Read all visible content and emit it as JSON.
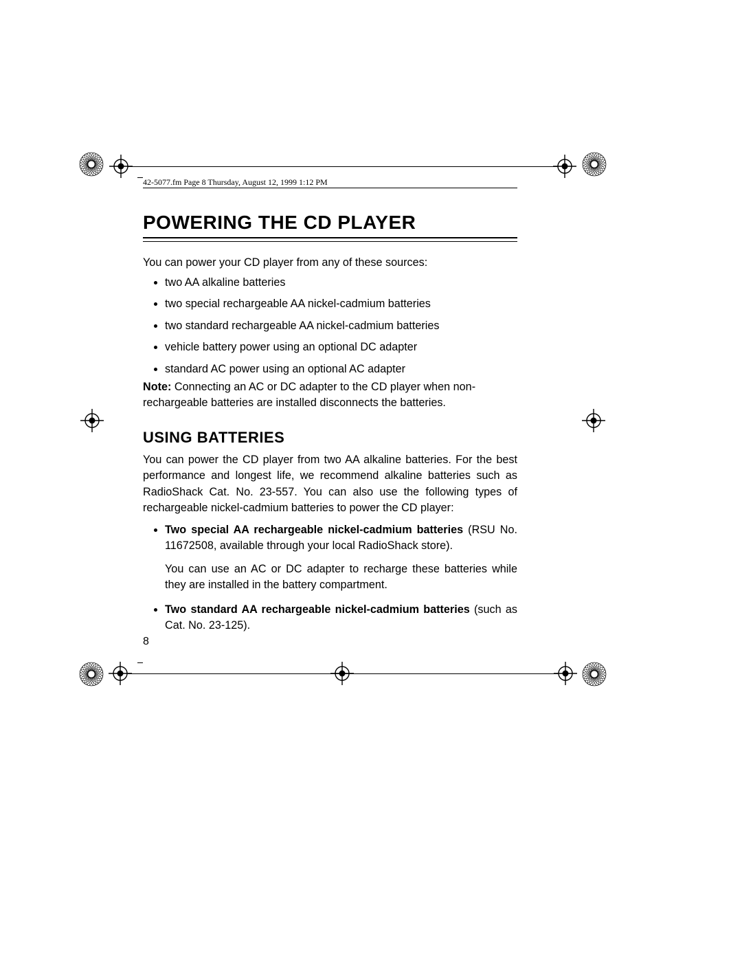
{
  "header": {
    "text": "42-5077.fm  Page 8  Thursday, August 12, 1999  1:12 PM"
  },
  "title": "POWERING THE CD PLAYER",
  "intro": "You can power your CD player from any of these sources:",
  "bullets": [
    "two AA alkaline batteries",
    "two special rechargeable AA nickel-cadmium batteries",
    "two standard rechargeable AA nickel-cadmium batteries",
    "vehicle battery power using an optional DC adapter",
    "standard AC power using an optional AC adapter"
  ],
  "note_label": "Note:",
  "note_text": " Connecting an AC or DC adapter to the CD player when non-rechargeable batteries are installed disconnects the batteries.",
  "subheading": "USING BATTERIES",
  "para2": "You can power the CD player from two AA alkaline batteries. For the best performance and longest life, we recommend alkaline batteries such as RadioShack Cat. No. 23-557. You can also use the following types of rechargeable nickel-cadmium batteries to power the CD player:",
  "detail_bullets": [
    {
      "bold": "Two special AA rechargeable nickel-cadmium batteries",
      "rest": " (RSU No. 11672508, available through your local RadioShack store).",
      "extra": "You can use an AC or DC adapter to recharge these batteries while they are installed in the battery compartment."
    },
    {
      "bold": "Two standard AA rechargeable nickel-cadmium batteries",
      "rest": " (such as Cat. No. 23-125).",
      "extra": ""
    }
  ],
  "page_number": "8",
  "colors": {
    "text": "#000000",
    "background": "#ffffff"
  },
  "fonts": {
    "body_size": 16.2,
    "title_size": 28,
    "subheading_size": 22,
    "header_size": 12
  }
}
